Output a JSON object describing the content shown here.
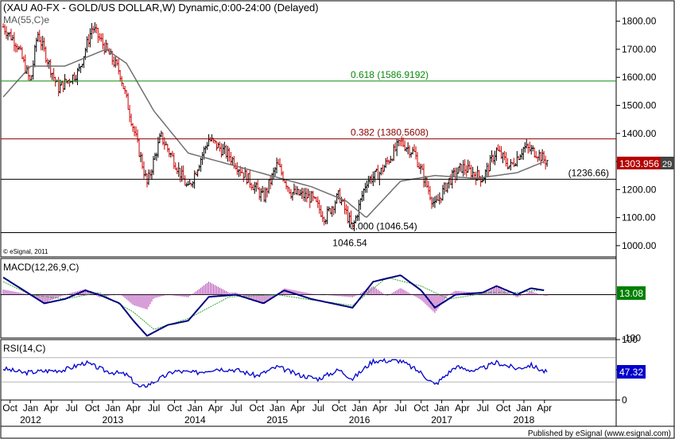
{
  "header": {
    "title": "(XAU A0-FX - GOLD/US DOLLAR,W) Dynamic,0:00-24:00 (Delayed)",
    "ma_label": "MA(55,C)e",
    "copyright": "© eSignal, 2011"
  },
  "colors": {
    "background": "#ffffff",
    "up_bar": "#000000",
    "down_bar": "#cc0000",
    "ma_line": "#707070",
    "fib_618": "#0a8a0a",
    "fib_382": "#8b0000",
    "level_line": "#000000",
    "macd_line": "#000080",
    "macd_signal": "#33aa33",
    "macd_hist": "#b040b0",
    "rsi_line": "#0000cc",
    "price_badge": "#b40000",
    "macd_badge": "#008000",
    "rsi_badge": "#0000cc"
  },
  "chart_data": [
    {
      "type": "bar",
      "panel": "price",
      "title": "(XAU A0-FX - GOLD/US DOLLAR,W) Dynamic,0:00-24:00 (Delayed)",
      "y_ticks": [
        "1800.00",
        "1700.00",
        "1600.00",
        "1500.00",
        "1400.00",
        "1300.00",
        "1200.00",
        "1100.00",
        "1000.00"
      ],
      "ylim": [
        960,
        1870
      ],
      "x_ticks_month": [
        "Oct",
        "Jan",
        "Apr",
        "Jul",
        "Oct",
        "Jan",
        "Apr",
        "Jul",
        "Oct",
        "Jan",
        "Apr",
        "Jul",
        "Oct",
        "Jan",
        "Apr",
        "Jul",
        "Oct",
        "Jan",
        "Apr",
        "Jul",
        "Oct",
        "Jan",
        "Apr",
        "Jul",
        "Oct",
        "Jan",
        "Apr"
      ],
      "x_ticks_year": [
        "2012",
        "2013",
        "2014",
        "2015",
        "2016",
        "2017",
        "2018"
      ],
      "series": [
        {
          "name": "MA(55,C)e",
          "x": [
            "2011-09",
            "2012-01",
            "2012-06",
            "2012-12",
            "2013-03",
            "2013-07",
            "2013-12",
            "2014-06",
            "2014-12",
            "2015-06",
            "2015-11",
            "2016-02",
            "2016-07",
            "2016-12",
            "2017-06",
            "2017-12",
            "2018-04"
          ],
          "values": [
            1530,
            1640,
            1640,
            1700,
            1650,
            1480,
            1330,
            1290,
            1250,
            1210,
            1160,
            1100,
            1230,
            1250,
            1240,
            1260,
            1300
          ]
        },
        {
          "name": "XAU weekly close",
          "x": [
            "2011-09",
            "2011-11",
            "2012-01",
            "2012-02",
            "2012-05",
            "2012-08",
            "2012-10",
            "2012-12",
            "2013-02",
            "2013-04",
            "2013-06",
            "2013-08",
            "2013-10",
            "2013-12",
            "2014-03",
            "2014-06",
            "2014-09",
            "2014-11",
            "2015-01",
            "2015-03",
            "2015-06",
            "2015-08",
            "2015-10",
            "2015-12",
            "2016-02",
            "2016-04",
            "2016-07",
            "2016-09",
            "2016-12",
            "2017-02",
            "2017-04",
            "2017-07",
            "2017-09",
            "2017-11",
            "2018-01",
            "2018-03",
            "2018-04"
          ],
          "values": [
            1780,
            1720,
            1580,
            1760,
            1560,
            1620,
            1780,
            1700,
            1620,
            1420,
            1220,
            1390,
            1300,
            1200,
            1380,
            1320,
            1230,
            1170,
            1290,
            1190,
            1170,
            1100,
            1180,
            1060,
            1230,
            1260,
            1370,
            1330,
            1140,
            1230,
            1280,
            1240,
            1340,
            1280,
            1350,
            1330,
            1304
          ]
        }
      ],
      "levels": [
        {
          "label": "0.618 (1586.9192)",
          "value": 1586.9192
        },
        {
          "label": "0.382 (1380.5608)",
          "value": 1380.5608
        },
        {
          "label": "(1236.66)",
          "value": 1236.66
        },
        {
          "label": "0.000 (1046.54)",
          "value": 1046.54
        },
        {
          "label": "1046.54",
          "value": 1046.54
        }
      ],
      "last_value": "1303.956",
      "last_value_suffix": "29"
    },
    {
      "type": "line",
      "panel": "macd",
      "title": "MACD(12,26,9,C)",
      "y_ticks": [
        "-100"
      ],
      "ylim": [
        -100,
        80
      ],
      "series": [
        {
          "name": "MACD",
          "x": [
            "2011-09",
            "2011-12",
            "2012-03",
            "2012-06",
            "2012-09",
            "2012-11",
            "2013-02",
            "2013-04",
            "2013-06",
            "2013-09",
            "2013-12",
            "2014-03",
            "2014-07",
            "2014-11",
            "2015-02",
            "2015-06",
            "2015-09",
            "2015-12",
            "2016-03",
            "2016-07",
            "2016-10",
            "2016-12",
            "2017-03",
            "2017-07",
            "2017-09",
            "2017-12",
            "2018-02",
            "2018-04"
          ],
          "values": [
            40,
            10,
            -20,
            -10,
            10,
            0,
            -20,
            -60,
            -95,
            -70,
            -60,
            -5,
            0,
            -20,
            10,
            -10,
            -20,
            -30,
            30,
            45,
            10,
            -30,
            0,
            5,
            20,
            0,
            15,
            10
          ]
        },
        {
          "name": "Signal",
          "x": [
            "2011-09",
            "2012-01",
            "2012-06",
            "2012-11",
            "2013-04",
            "2013-07",
            "2013-12",
            "2014-06",
            "2015-01",
            "2015-06",
            "2015-12",
            "2016-05",
            "2016-10",
            "2017-02",
            "2017-08",
            "2017-12",
            "2018-04"
          ],
          "values": [
            30,
            0,
            -10,
            5,
            -40,
            -80,
            -55,
            -5,
            0,
            -12,
            -25,
            40,
            20,
            -10,
            5,
            5,
            12
          ]
        }
      ],
      "last_value": "13.08"
    },
    {
      "type": "line",
      "panel": "rsi",
      "title": "RSI(14,C)",
      "y_ticks": [
        "100",
        "50",
        "0"
      ],
      "ylim": [
        0,
        100
      ],
      "series": [
        {
          "name": "RSI(14,C)",
          "x": [
            "2011-09",
            "2011-12",
            "2012-03",
            "2012-06",
            "2012-09",
            "2012-12",
            "2013-03",
            "2013-05",
            "2013-07",
            "2013-10",
            "2014-01",
            "2014-04",
            "2014-07",
            "2014-10",
            "2015-01",
            "2015-04",
            "2015-07",
            "2015-10",
            "2015-12",
            "2016-03",
            "2016-07",
            "2016-10",
            "2016-12",
            "2017-03",
            "2017-06",
            "2017-09",
            "2017-12",
            "2018-02",
            "2018-04"
          ],
          "values": [
            52,
            45,
            48,
            50,
            62,
            48,
            42,
            20,
            30,
            48,
            45,
            52,
            50,
            40,
            55,
            42,
            35,
            50,
            35,
            65,
            65,
            45,
            25,
            55,
            48,
            62,
            52,
            58,
            47
          ]
        }
      ],
      "last_value": "47.32"
    }
  ],
  "footer": {
    "published": "Published by eSignal (www.esignal.com)"
  }
}
